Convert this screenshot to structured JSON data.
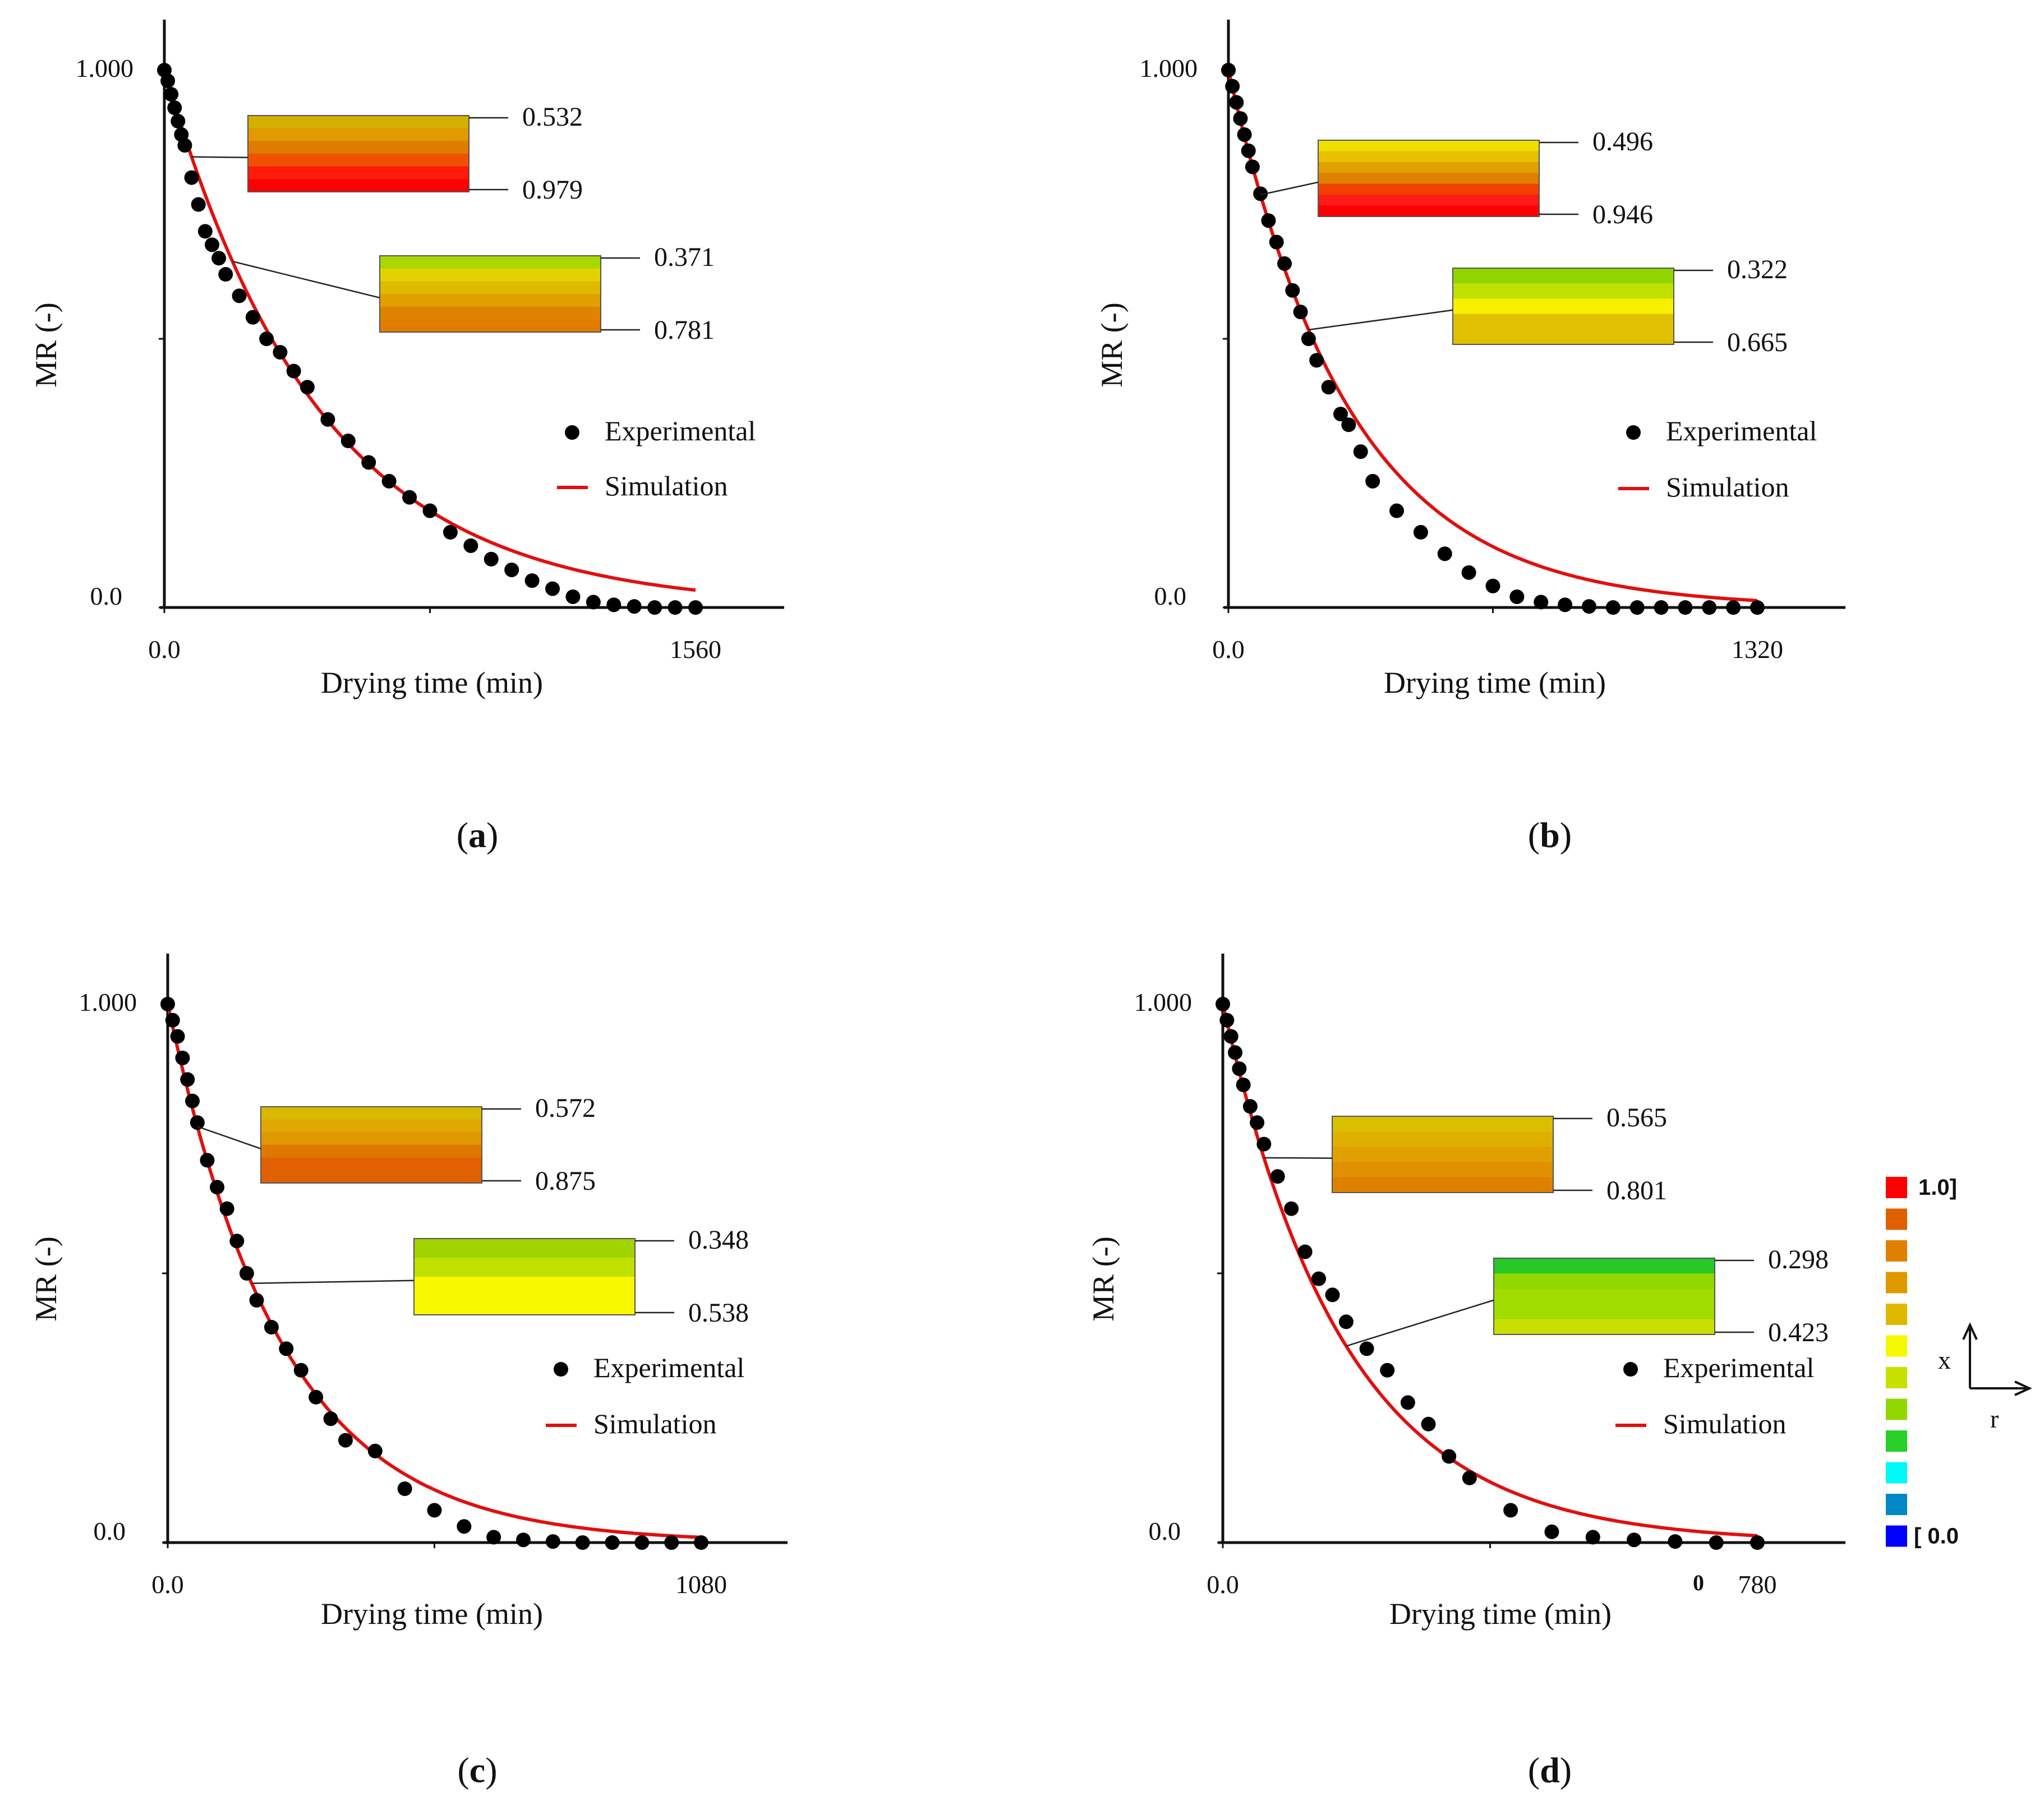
{
  "colors": {
    "simulation": "#e01010",
    "experimental": "#000000",
    "axis": "#111111"
  },
  "panels": [
    {
      "label": "(a)",
      "letter": "a",
      "chart_data": {
        "type": "line+scatter",
        "xlabel": "Drying time (min)",
        "ylabel": "MR (-)",
        "xlim": [
          0,
          1560
        ],
        "ylim": [
          0,
          1
        ],
        "x_ticks": [
          "0.0",
          "1560"
        ],
        "y_ticks": [
          "0.0",
          "1.000"
        ],
        "legend": [
          "Experimental",
          "Simulation"
        ],
        "k": 0.0022,
        "experimental": {
          "x": [
            0,
            10,
            20,
            30,
            40,
            50,
            60,
            80,
            100,
            120,
            140,
            160,
            180,
            220,
            260,
            300,
            340,
            380,
            420,
            480,
            540,
            600,
            660,
            720,
            780,
            840,
            900,
            960,
            1020,
            1080,
            1140,
            1200,
            1260,
            1320,
            1380,
            1440,
            1500,
            1560
          ],
          "y": [
            1.0,
            0.98,
            0.955,
            0.93,
            0.905,
            0.88,
            0.86,
            0.8,
            0.75,
            0.7,
            0.675,
            0.65,
            0.62,
            0.58,
            0.54,
            0.5,
            0.475,
            0.44,
            0.41,
            0.35,
            0.31,
            0.27,
            0.235,
            0.205,
            0.18,
            0.14,
            0.115,
            0.09,
            0.07,
            0.05,
            0.035,
            0.02,
            0.01,
            0.005,
            0.002,
            0.0,
            0.0,
            0.0
          ]
        },
        "callouts": [
          {
            "top": "0.532",
            "bottom": "0.979",
            "at_time": 80,
            "colors": [
              "#d4b000",
              "#e09a00",
              "#e07a00",
              "#f05000",
              "#ff1a0a",
              "#ff0000"
            ]
          },
          {
            "top": "0.371",
            "bottom": "0.781",
            "at_time": 200,
            "colors": [
              "#a8d800",
              "#e2d200",
              "#e0ba00",
              "#e0a000",
              "#e08400",
              "#e07c00"
            ]
          }
        ]
      }
    },
    {
      "label": "(b)",
      "letter": "b",
      "chart_data": {
        "type": "line+scatter",
        "xlabel": "Drying time (min)",
        "ylabel": "MR (-)",
        "xlim": [
          0,
          1320
        ],
        "ylim": [
          0,
          1
        ],
        "x_ticks": [
          "0.0",
          "1320"
        ],
        "y_ticks": [
          "0.0",
          "1.000"
        ],
        "legend": [
          "Experimental",
          "Simulation"
        ],
        "k": 0.0033,
        "experimental": {
          "x": [
            0,
            10,
            20,
            30,
            40,
            50,
            60,
            80,
            100,
            120,
            140,
            160,
            180,
            200,
            220,
            250,
            280,
            300,
            330,
            360,
            420,
            480,
            540,
            600,
            660,
            720,
            780,
            840,
            900,
            960,
            1020,
            1080,
            1140,
            1200,
            1260,
            1320
          ],
          "y": [
            1.0,
            0.97,
            0.94,
            0.91,
            0.88,
            0.85,
            0.82,
            0.77,
            0.72,
            0.68,
            0.64,
            0.59,
            0.55,
            0.5,
            0.46,
            0.41,
            0.36,
            0.34,
            0.29,
            0.235,
            0.18,
            0.14,
            0.1,
            0.065,
            0.04,
            0.02,
            0.01,
            0.005,
            0.002,
            0.0,
            0.0,
            0.0,
            0.0,
            0.0,
            0.0,
            0.0
          ]
        },
        "callouts": [
          {
            "top": "0.496",
            "bottom": "0.946",
            "at_time": 80,
            "colors": [
              "#f0e000",
              "#e8c000",
              "#e0a000",
              "#e08000",
              "#f04000",
              "#ff1a1a",
              "#ff0000"
            ]
          },
          {
            "top": "0.322",
            "bottom": "0.665",
            "at_time": 200,
            "colors": [
              "#90d400",
              "#c0e000",
              "#f8f000",
              "#e0c000",
              "#e0c000"
            ]
          }
        ]
      }
    },
    {
      "label": "(c)",
      "letter": "c",
      "chart_data": {
        "type": "line+scatter",
        "xlabel": "Drying time (min)",
        "ylabel": "MR (-)",
        "xlim": [
          0,
          1080
        ],
        "ylim": [
          0,
          1
        ],
        "x_ticks": [
          "0.0",
          "1080"
        ],
        "y_ticks": [
          "0.0",
          "1.000"
        ],
        "legend": [
          "Experimental",
          "Simulation"
        ],
        "k": 0.0043,
        "experimental": {
          "x": [
            0,
            10,
            20,
            30,
            40,
            50,
            60,
            80,
            100,
            120,
            140,
            160,
            180,
            210,
            240,
            270,
            300,
            330,
            360,
            420,
            480,
            540,
            600,
            660,
            720,
            780,
            840,
            900,
            960,
            1020,
            1080
          ],
          "y": [
            1.0,
            0.97,
            0.94,
            0.9,
            0.86,
            0.82,
            0.78,
            0.71,
            0.66,
            0.62,
            0.56,
            0.5,
            0.45,
            0.4,
            0.36,
            0.32,
            0.27,
            0.23,
            0.19,
            0.17,
            0.1,
            0.06,
            0.03,
            0.01,
            0.005,
            0.002,
            0.0,
            0.0,
            0.0,
            0.0,
            0.0
          ]
        },
        "callouts": [
          {
            "top": "0.572",
            "bottom": "0.875",
            "at_time": 60,
            "colors": [
              "#d8b800",
              "#e0a800",
              "#e09800",
              "#e07800",
              "#e06000",
              "#e06000"
            ]
          },
          {
            "top": "0.348",
            "bottom": "0.538",
            "at_time": 170,
            "colors": [
              "#a0d400",
              "#c0e000",
              "#f8f800",
              "#f8f800"
            ]
          }
        ]
      }
    },
    {
      "label": "(d)",
      "letter": "d",
      "chart_data": {
        "type": "line+scatter",
        "xlabel": "Drying time (min)",
        "ylabel": "MR (-)",
        "xlim": [
          0,
          780
        ],
        "ylim": [
          0,
          1
        ],
        "x_ticks": [
          "0.0",
          "780"
        ],
        "extra_tick": "0",
        "y_ticks": [
          "0.0",
          "1.000"
        ],
        "legend": [
          "Experimental",
          "Simulation"
        ],
        "k": 0.0056,
        "experimental": {
          "x": [
            0,
            6,
            12,
            18,
            24,
            30,
            40,
            50,
            60,
            80,
            100,
            120,
            140,
            160,
            180,
            210,
            240,
            270,
            300,
            330,
            360,
            420,
            480,
            540,
            600,
            660,
            720,
            780
          ],
          "y": [
            1.0,
            0.97,
            0.94,
            0.91,
            0.88,
            0.85,
            0.81,
            0.78,
            0.74,
            0.68,
            0.62,
            0.54,
            0.49,
            0.46,
            0.41,
            0.36,
            0.32,
            0.26,
            0.22,
            0.16,
            0.12,
            0.06,
            0.02,
            0.01,
            0.005,
            0.002,
            0.0,
            0.0
          ]
        },
        "callouts": [
          {
            "top": "0.565",
            "bottom": "0.801",
            "at_time": 60,
            "colors": [
              "#d8c000",
              "#e0b000",
              "#e0a000",
              "#e09000",
              "#e08000"
            ]
          },
          {
            "top": "0.298",
            "bottom": "0.423",
            "at_time": 180,
            "colors": [
              "#28c828",
              "#90d800",
              "#a0dc00",
              "#a0dc00",
              "#c8e000"
            ]
          }
        ]
      }
    }
  ],
  "color_scale": {
    "top_label": "1.0]",
    "bottom_label": "[ 0.0",
    "colors": [
      "#ff0000",
      "#e06000",
      "#e08000",
      "#e09800",
      "#e0b800",
      "#f8f800",
      "#c8e000",
      "#90d800",
      "#28d028",
      "#00f8f8",
      "#0088c8",
      "#0000ff"
    ]
  },
  "axes_indicator": {
    "x": "x",
    "r": "r"
  }
}
